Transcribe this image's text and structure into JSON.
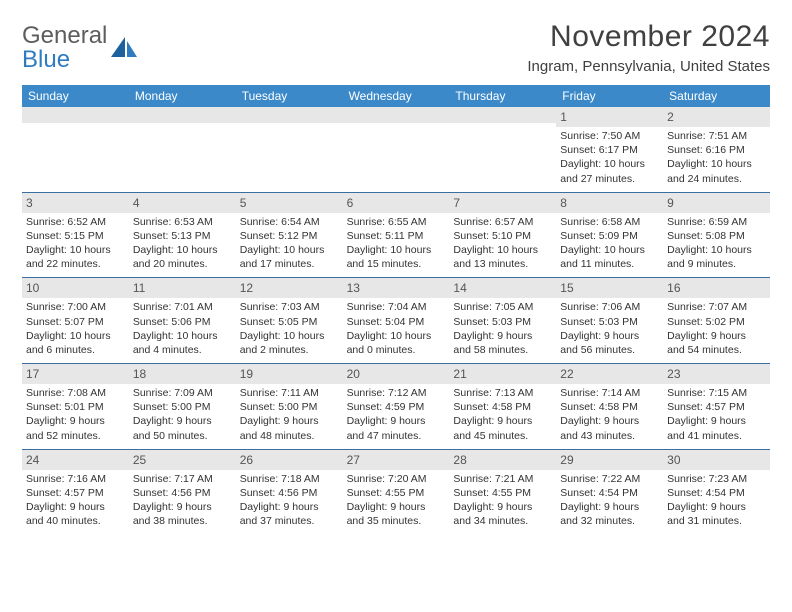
{
  "logo": {
    "line1": "General",
    "line2": "Blue"
  },
  "title": "November 2024",
  "location": "Ingram, Pennsylvania, United States",
  "colors": {
    "header_bg": "#3b89c9",
    "header_text": "#ffffff",
    "daynum_bg": "#e7e7e7",
    "row_divider": "#3b6fa0",
    "logo_gray": "#5d5d5d",
    "logo_blue": "#2f7bbf",
    "text": "#333333"
  },
  "dow": [
    "Sunday",
    "Monday",
    "Tuesday",
    "Wednesday",
    "Thursday",
    "Friday",
    "Saturday"
  ],
  "weeks": [
    [
      null,
      null,
      null,
      null,
      null,
      {
        "n": "1",
        "sr": "7:50 AM",
        "ss": "6:17 PM",
        "dl": "10 hours and 27 minutes."
      },
      {
        "n": "2",
        "sr": "7:51 AM",
        "ss": "6:16 PM",
        "dl": "10 hours and 24 minutes."
      }
    ],
    [
      {
        "n": "3",
        "sr": "6:52 AM",
        "ss": "5:15 PM",
        "dl": "10 hours and 22 minutes."
      },
      {
        "n": "4",
        "sr": "6:53 AM",
        "ss": "5:13 PM",
        "dl": "10 hours and 20 minutes."
      },
      {
        "n": "5",
        "sr": "6:54 AM",
        "ss": "5:12 PM",
        "dl": "10 hours and 17 minutes."
      },
      {
        "n": "6",
        "sr": "6:55 AM",
        "ss": "5:11 PM",
        "dl": "10 hours and 15 minutes."
      },
      {
        "n": "7",
        "sr": "6:57 AM",
        "ss": "5:10 PM",
        "dl": "10 hours and 13 minutes."
      },
      {
        "n": "8",
        "sr": "6:58 AM",
        "ss": "5:09 PM",
        "dl": "10 hours and 11 minutes."
      },
      {
        "n": "9",
        "sr": "6:59 AM",
        "ss": "5:08 PM",
        "dl": "10 hours and 9 minutes."
      }
    ],
    [
      {
        "n": "10",
        "sr": "7:00 AM",
        "ss": "5:07 PM",
        "dl": "10 hours and 6 minutes."
      },
      {
        "n": "11",
        "sr": "7:01 AM",
        "ss": "5:06 PM",
        "dl": "10 hours and 4 minutes."
      },
      {
        "n": "12",
        "sr": "7:03 AM",
        "ss": "5:05 PM",
        "dl": "10 hours and 2 minutes."
      },
      {
        "n": "13",
        "sr": "7:04 AM",
        "ss": "5:04 PM",
        "dl": "10 hours and 0 minutes."
      },
      {
        "n": "14",
        "sr": "7:05 AM",
        "ss": "5:03 PM",
        "dl": "9 hours and 58 minutes."
      },
      {
        "n": "15",
        "sr": "7:06 AM",
        "ss": "5:03 PM",
        "dl": "9 hours and 56 minutes."
      },
      {
        "n": "16",
        "sr": "7:07 AM",
        "ss": "5:02 PM",
        "dl": "9 hours and 54 minutes."
      }
    ],
    [
      {
        "n": "17",
        "sr": "7:08 AM",
        "ss": "5:01 PM",
        "dl": "9 hours and 52 minutes."
      },
      {
        "n": "18",
        "sr": "7:09 AM",
        "ss": "5:00 PM",
        "dl": "9 hours and 50 minutes."
      },
      {
        "n": "19",
        "sr": "7:11 AM",
        "ss": "5:00 PM",
        "dl": "9 hours and 48 minutes."
      },
      {
        "n": "20",
        "sr": "7:12 AM",
        "ss": "4:59 PM",
        "dl": "9 hours and 47 minutes."
      },
      {
        "n": "21",
        "sr": "7:13 AM",
        "ss": "4:58 PM",
        "dl": "9 hours and 45 minutes."
      },
      {
        "n": "22",
        "sr": "7:14 AM",
        "ss": "4:58 PM",
        "dl": "9 hours and 43 minutes."
      },
      {
        "n": "23",
        "sr": "7:15 AM",
        "ss": "4:57 PM",
        "dl": "9 hours and 41 minutes."
      }
    ],
    [
      {
        "n": "24",
        "sr": "7:16 AM",
        "ss": "4:57 PM",
        "dl": "9 hours and 40 minutes."
      },
      {
        "n": "25",
        "sr": "7:17 AM",
        "ss": "4:56 PM",
        "dl": "9 hours and 38 minutes."
      },
      {
        "n": "26",
        "sr": "7:18 AM",
        "ss": "4:56 PM",
        "dl": "9 hours and 37 minutes."
      },
      {
        "n": "27",
        "sr": "7:20 AM",
        "ss": "4:55 PM",
        "dl": "9 hours and 35 minutes."
      },
      {
        "n": "28",
        "sr": "7:21 AM",
        "ss": "4:55 PM",
        "dl": "9 hours and 34 minutes."
      },
      {
        "n": "29",
        "sr": "7:22 AM",
        "ss": "4:54 PM",
        "dl": "9 hours and 32 minutes."
      },
      {
        "n": "30",
        "sr": "7:23 AM",
        "ss": "4:54 PM",
        "dl": "9 hours and 31 minutes."
      }
    ]
  ],
  "labels": {
    "sunrise": "Sunrise:",
    "sunset": "Sunset:",
    "daylight": "Daylight:"
  }
}
